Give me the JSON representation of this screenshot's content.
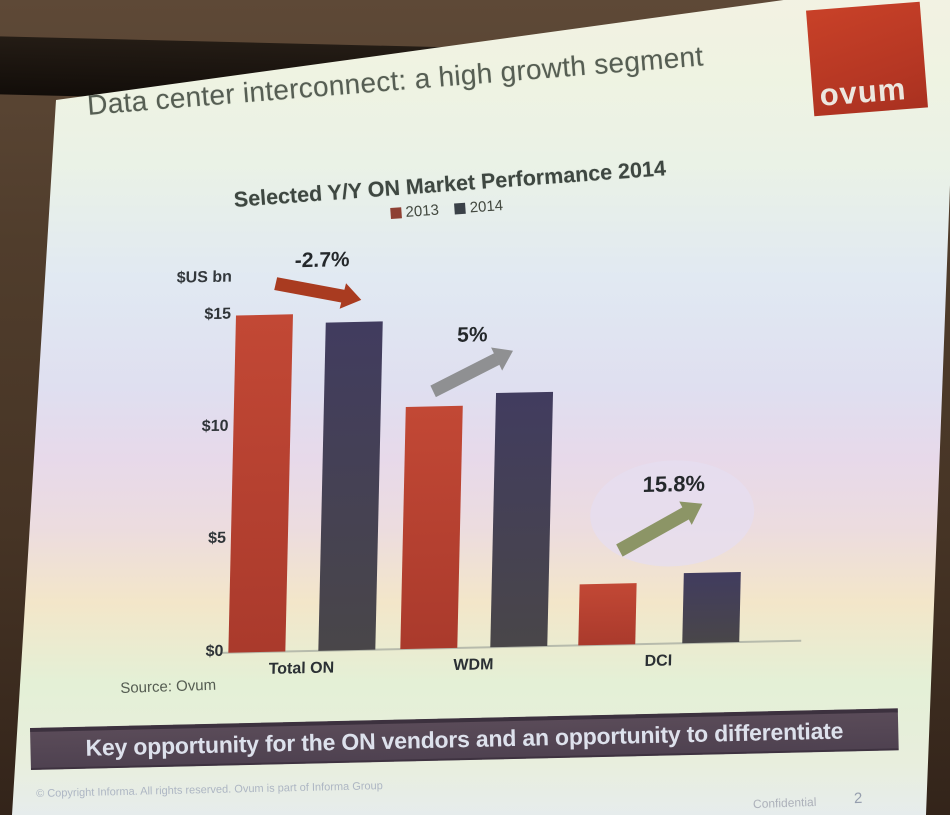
{
  "slide": {
    "title": "Data center interconnect: a high growth segment",
    "logo_text": "ovum",
    "source_label": "Source: Ovum",
    "banner_text": "Key opportunity for the ON vendors and an opportunity to differentiate",
    "footer_copyright": "© Copyright Informa. All rights reserved. Ovum is part of Informa Group",
    "footer_confidential": "Confidential",
    "page_number": "2"
  },
  "chart_data": {
    "type": "bar",
    "title": "Selected Y/Y ON Market Performance 2014",
    "unit_label": "$US bn",
    "categories": [
      "Total ON",
      "WDM",
      "DCI"
    ],
    "series": [
      {
        "name": "2013",
        "values": [
          15.0,
          10.8,
          2.7
        ],
        "color_top": "#c24835",
        "color_bottom": "#aa3a2c",
        "legend_color": "#8e4033"
      },
      {
        "name": "2014",
        "values": [
          14.6,
          11.3,
          3.1
        ],
        "color_top": "#413c5f",
        "color_bottom": "#494649",
        "legend_color": "#3a4148"
      }
    ],
    "y_ticks": [
      "$15",
      "$10",
      "$5",
      "$0"
    ],
    "y_tick_values": [
      15,
      10,
      5,
      0
    ],
    "ylim": [
      0,
      15
    ],
    "xlabel": "",
    "ylabel": "$US bn",
    "grid": false,
    "legend_position": "top-center",
    "annotations": [
      {
        "category": "Total ON",
        "label": "-2.7%",
        "arrow_color": "#a93b20",
        "direction": "flat-right",
        "highlighted": false
      },
      {
        "category": "WDM",
        "label": "5%",
        "arrow_color": "#8f9092",
        "direction": "up-right",
        "highlighted": false
      },
      {
        "category": "DCI",
        "label": "15.8%",
        "arrow_color": "#8c9566",
        "direction": "up-right",
        "highlighted": true
      }
    ]
  },
  "colors": {
    "slide_accent_red": "#c24835",
    "series_2014_dark": "#41405a",
    "banner_bg": "#524455",
    "logo_bg": "#c03a26",
    "highlight_ellipse": "#e5def0",
    "room_brown": "#4c3a2a"
  }
}
